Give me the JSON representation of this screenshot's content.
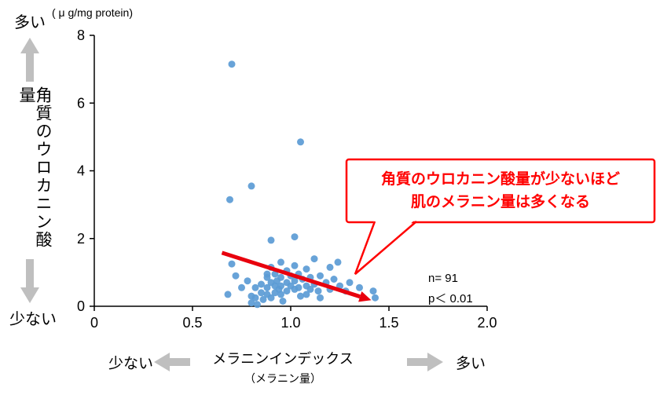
{
  "labels": {
    "unit": "( μ g/mg protein)",
    "y_more": "多い",
    "y_less": "少ない",
    "y_title": "角質のウロカニン酸量",
    "x_title": "メラニンインデックス",
    "x_subtitle": "（メラニン量）",
    "x_less": "少ない",
    "x_more": "多い"
  },
  "callout": {
    "line1": "角質のウロカニン酸量が少ないほど",
    "line2": "肌のメラニン量は多くなる"
  },
  "stats": {
    "n": "n= 91",
    "p": "p＜ 0.01"
  },
  "colors": {
    "point": "#5b9bd5",
    "trend": "#e8000d",
    "callout": "#ff0000",
    "axis": "#000000",
    "gray_arrow": "#bfbfbf"
  },
  "chart_data": {
    "type": "scatter",
    "title": "",
    "xlabel": "メラニンインデックス（メラニン量）",
    "ylabel": "角質のウロカニン酸量 ( μ g/mg protein)",
    "xlim": [
      0,
      2.0
    ],
    "ylim": [
      0,
      8
    ],
    "x_ticks": [
      0,
      0.5,
      1.0,
      1.5,
      2.0
    ],
    "x_tick_labels": [
      "0",
      "0.5",
      "1.0",
      "1.5",
      "2.0"
    ],
    "y_ticks": [
      0,
      2,
      4,
      6,
      8
    ],
    "y_tick_labels": [
      "0",
      "2",
      "4",
      "6",
      "8"
    ],
    "n": 91,
    "p_value": "p < 0.01",
    "annotation": "角質のウロカニン酸量が少ないほど肌のメラニン量は多くなる",
    "trend_line": {
      "x1": 0.65,
      "y1": 1.58,
      "x2": 1.41,
      "y2": 0.18
    },
    "points": [
      [
        0.7,
        7.15
      ],
      [
        1.05,
        4.85
      ],
      [
        0.8,
        3.55
      ],
      [
        0.69,
        3.15
      ],
      [
        0.9,
        1.95
      ],
      [
        1.02,
        2.05
      ],
      [
        0.7,
        1.25
      ],
      [
        0.95,
        1.3
      ],
      [
        1.12,
        1.4
      ],
      [
        1.24,
        1.3
      ],
      [
        0.9,
        1.15
      ],
      [
        1.02,
        1.2
      ],
      [
        1.2,
        1.15
      ],
      [
        1.08,
        1.1
      ],
      [
        0.98,
        1.05
      ],
      [
        0.72,
        0.9
      ],
      [
        0.88,
        0.95
      ],
      [
        0.92,
        0.95
      ],
      [
        1.04,
        0.95
      ],
      [
        1.15,
        0.9
      ],
      [
        1.0,
        0.9
      ],
      [
        0.95,
        0.85
      ],
      [
        1.1,
        0.85
      ],
      [
        0.88,
        0.85
      ],
      [
        1.22,
        0.8
      ],
      [
        1.06,
        0.8
      ],
      [
        0.78,
        0.75
      ],
      [
        0.93,
        0.75
      ],
      [
        1.02,
        0.75
      ],
      [
        0.9,
        0.7
      ],
      [
        0.98,
        0.7
      ],
      [
        1.18,
        0.7
      ],
      [
        1.3,
        0.7
      ],
      [
        0.85,
        0.65
      ],
      [
        1.12,
        0.65
      ],
      [
        0.82,
        0.55
      ],
      [
        0.88,
        0.55
      ],
      [
        0.92,
        0.6
      ],
      [
        1.0,
        0.6
      ],
      [
        1.08,
        0.6
      ],
      [
        1.25,
        0.6
      ],
      [
        0.75,
        0.55
      ],
      [
        0.94,
        0.5
      ],
      [
        1.04,
        0.55
      ],
      [
        1.1,
        0.5
      ],
      [
        1.35,
        0.55
      ],
      [
        0.95,
        0.6
      ],
      [
        1.02,
        0.5
      ],
      [
        0.85,
        0.4
      ],
      [
        0.92,
        0.4
      ],
      [
        0.98,
        0.45
      ],
      [
        1.14,
        0.45
      ],
      [
        1.2,
        0.5
      ],
      [
        1.28,
        0.45
      ],
      [
        1.42,
        0.45
      ],
      [
        0.68,
        0.35
      ],
      [
        0.88,
        0.35
      ],
      [
        0.95,
        0.35
      ],
      [
        1.05,
        0.3
      ],
      [
        1.08,
        0.35
      ],
      [
        0.8,
        0.3
      ],
      [
        0.82,
        0.25
      ],
      [
        0.9,
        0.25
      ],
      [
        1.15,
        0.25
      ],
      [
        1.43,
        0.25
      ],
      [
        0.86,
        0.2
      ],
      [
        0.96,
        0.15
      ],
      [
        0.8,
        0.1
      ],
      [
        0.83,
        0.05
      ]
    ]
  }
}
